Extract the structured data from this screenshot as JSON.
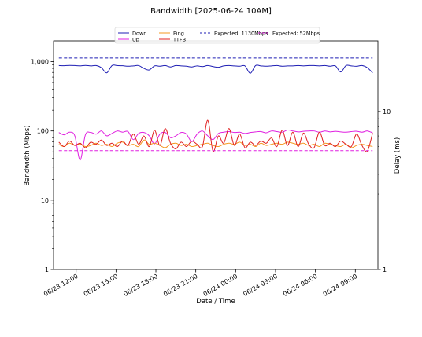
{
  "chart_data": {
    "type": "line",
    "title": "Bandwidth [2025-06-24 10AM]",
    "xlabel": "Date / Time",
    "ylabel": "Bandwidth (Mbps)",
    "ylabel_right": "Delay (ms)",
    "y_scale": "log",
    "y_ticks": [
      1,
      10,
      100,
      1000
    ],
    "y_tick_labels": [
      "1",
      "10",
      "100",
      "1,000"
    ],
    "y_right_scale": "log",
    "y_right_ticks": [
      1,
      10
    ],
    "y_right_tick_labels": [
      "1",
      "10"
    ],
    "x_tick_labels": [
      "06/23 12:00",
      "06/23 15:00",
      "06/23 18:00",
      "06/23 21:00",
      "06/24 00:00",
      "06/24 03:00",
      "06/24 06:00",
      "06/24 09:00"
    ],
    "grid": false,
    "legend_position": "top-center",
    "x_hours": [
      -0.8,
      -0.4,
      0.0,
      0.4,
      0.8,
      1.2,
      1.6,
      2.0,
      2.4,
      2.8,
      3.2,
      3.6,
      4.0,
      4.4,
      4.8,
      5.2,
      5.6,
      6.0,
      6.4,
      6.8,
      7.2,
      7.6,
      8.0,
      8.4,
      8.8,
      9.2,
      9.6,
      10.0,
      10.4,
      10.8,
      11.2,
      11.6,
      12.0,
      12.4,
      12.8,
      13.2,
      13.6,
      14.0,
      14.4,
      14.8,
      15.2,
      15.6,
      16.0,
      16.4,
      16.8,
      17.2,
      17.6,
      18.0,
      18.4,
      18.8,
      19.2,
      19.6,
      20.0,
      20.4,
      20.8,
      21.2,
      21.6,
      22.0,
      22.4,
      22.8
    ],
    "series": [
      {
        "name": "Down",
        "axis": "left",
        "color": "#1f1fb4",
        "style": "solid",
        "values": [
          880,
          875,
          885,
          880,
          870,
          885,
          870,
          880,
          820,
          690,
          880,
          880,
          875,
          860,
          870,
          880,
          800,
          760,
          870,
          860,
          880,
          840,
          880,
          870,
          860,
          840,
          870,
          850,
          880,
          850,
          830,
          870,
          880,
          870,
          860,
          870,
          680,
          880,
          870,
          860,
          870,
          880,
          860,
          870,
          870,
          880,
          870,
          880,
          880,
          870,
          880,
          860,
          870,
          710,
          880,
          870,
          860,
          880,
          820,
          690
        ]
      },
      {
        "name": "Up",
        "axis": "left",
        "color": "#e020e0",
        "style": "solid",
        "values": [
          95,
          88,
          96,
          85,
          38,
          88,
          95,
          90,
          100,
          85,
          92,
          100,
          96,
          98,
          75,
          92,
          95,
          85,
          65,
          90,
          95,
          80,
          85,
          95,
          90,
          70,
          90,
          100,
          85,
          75,
          92,
          96,
          98,
          95,
          96,
          92,
          95,
          97,
          98,
          94,
          100,
          98,
          96,
          103,
          100,
          97,
          99,
          100,
          100,
          96,
          100,
          97,
          99,
          97,
          96,
          98,
          99,
          96,
          100,
          94
        ]
      },
      {
        "name": "Ping",
        "axis": "right",
        "color": "#f59820",
        "style": "solid",
        "values": [
          6.2,
          6.0,
          6.3,
          6.1,
          6.2,
          6.0,
          6.1,
          6.3,
          6.1,
          6.2,
          6.0,
          6.3,
          6.4,
          6.1,
          6.2,
          6.0,
          6.6,
          6.2,
          6.3,
          6.1,
          5.9,
          6.2,
          6.3,
          6.1,
          6.2,
          6.0,
          6.1,
          6.2,
          6.3,
          6.1,
          6.0,
          6.2,
          6.3,
          6.2,
          6.4,
          6.1,
          6.2,
          6.0,
          6.3,
          6.1,
          6.2,
          6.3,
          6.2,
          6.4,
          6.3,
          6.2,
          6.3,
          6.1,
          6.2,
          6.0,
          6.3,
          6.2,
          6.1,
          6.0,
          6.2,
          5.9,
          6.1,
          6.2,
          6.1,
          6.0
        ]
      },
      {
        "name": "TTFB",
        "axis": "right",
        "color": "#e02020",
        "style": "solid",
        "values": [
          6.4,
          6.0,
          6.5,
          6.1,
          6.3,
          5.9,
          6.4,
          6.2,
          6.6,
          6.1,
          6.3,
          6.0,
          6.5,
          6.1,
          7.2,
          6.2,
          7.0,
          6.0,
          7.6,
          6.1,
          7.8,
          6.3,
          5.8,
          6.4,
          6.0,
          6.5,
          6.2,
          6.0,
          8.8,
          5.6,
          7.0,
          6.3,
          7.8,
          6.1,
          7.2,
          5.9,
          6.4,
          6.1,
          6.5,
          6.3,
          6.8,
          6.0,
          7.6,
          6.1,
          7.4,
          6.0,
          7.3,
          6.2,
          5.9,
          7.4,
          6.1,
          6.3,
          6.0,
          6.5,
          6.2,
          6.0,
          7.2,
          6.1,
          5.6,
          7.3
        ]
      },
      {
        "name": "Expected: 1130Mbps",
        "axis": "left",
        "color": "#1f1fb4",
        "style": "dashed",
        "constant": 1130
      },
      {
        "name": "Expected: 52Mbps",
        "axis": "left",
        "color": "#e020e0",
        "style": "dashed",
        "constant": 52
      }
    ]
  }
}
